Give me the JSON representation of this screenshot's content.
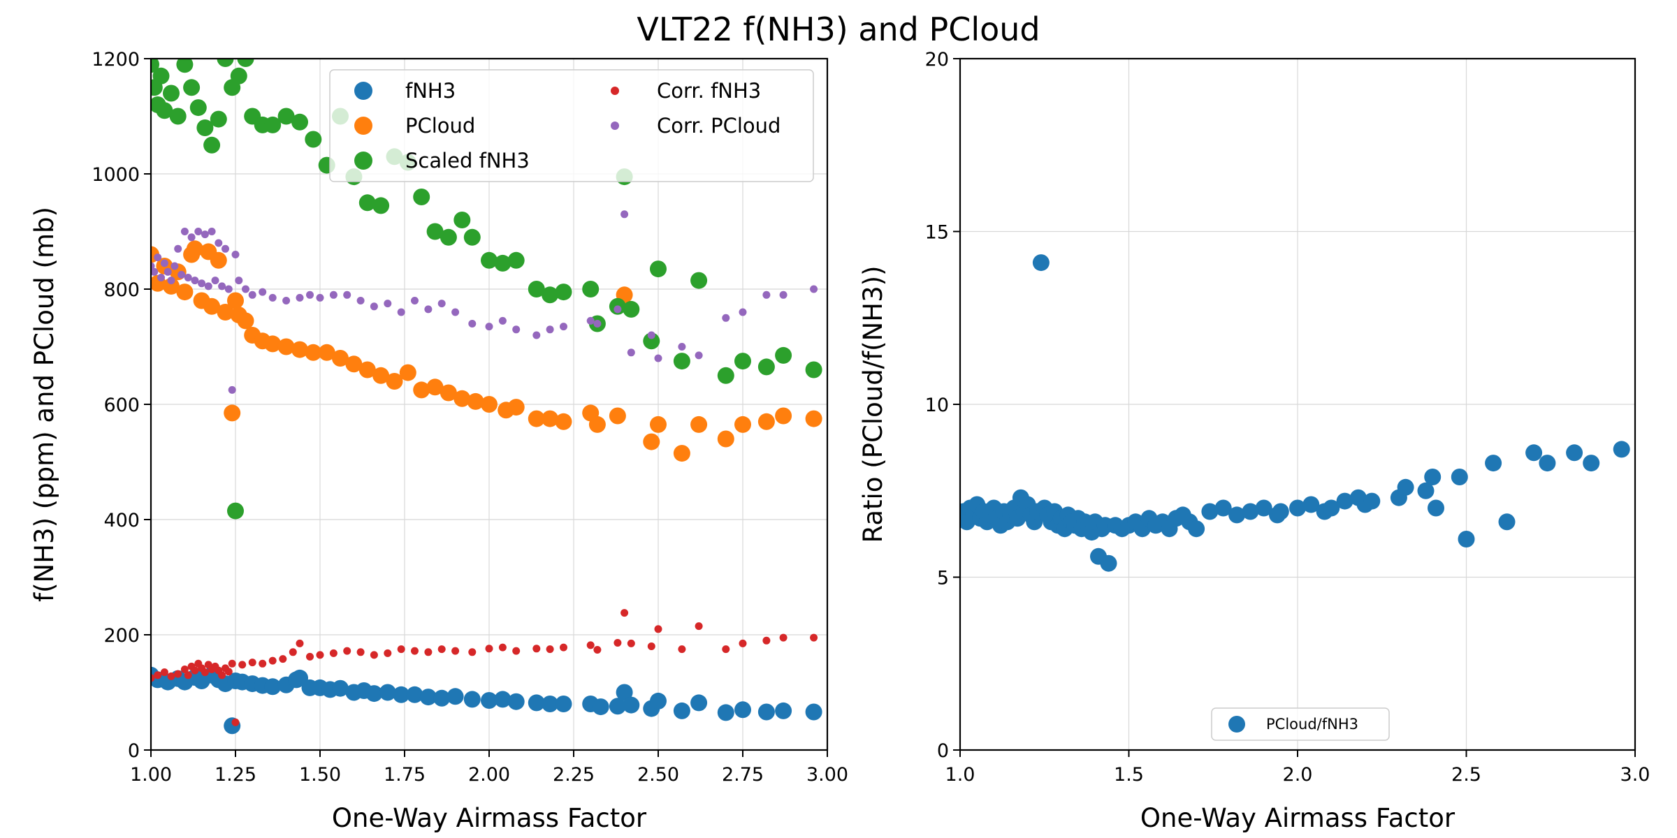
{
  "figure": {
    "title": "VLT22 f(NH3) and PCloud"
  },
  "chart_data": [
    {
      "type": "scatter",
      "xlabel": "One-Way Airmass Factor",
      "ylabel": "f(NH3) (ppm) and PCloud (mb)",
      "xlim": [
        1.0,
        3.0
      ],
      "ylim": [
        0,
        1200
      ],
      "xticks": [
        "1.00",
        "1.25",
        "1.50",
        "1.75",
        "2.00",
        "2.25",
        "2.50",
        "2.75",
        "3.00"
      ],
      "yticks": [
        "0",
        "200",
        "400",
        "600",
        "800",
        "1000",
        "1200"
      ],
      "grid": true,
      "legend_position": "upper-center",
      "legend_columns": 2,
      "series": [
        {
          "name": "fNH3",
          "color": "#1f77b4",
          "marker": "large",
          "x": [
            1.0,
            1.02,
            1.05,
            1.08,
            1.1,
            1.13,
            1.15,
            1.18,
            1.2,
            1.22,
            1.24,
            1.25,
            1.27,
            1.3,
            1.33,
            1.36,
            1.4,
            1.43,
            1.44,
            1.47,
            1.5,
            1.53,
            1.56,
            1.6,
            1.63,
            1.66,
            1.7,
            1.74,
            1.78,
            1.82,
            1.86,
            1.9,
            1.95,
            2.0,
            2.04,
            2.08,
            2.14,
            2.18,
            2.22,
            2.3,
            2.33,
            2.38,
            2.4,
            2.42,
            2.48,
            2.5,
            2.57,
            2.62,
            2.7,
            2.75,
            2.82,
            2.87,
            2.96
          ],
          "y": [
            130,
            122,
            118,
            124,
            118,
            126,
            120,
            130,
            122,
            115,
            42,
            120,
            118,
            115,
            112,
            110,
            113,
            122,
            125,
            108,
            108,
            105,
            107,
            100,
            103,
            98,
            100,
            96,
            96,
            92,
            90,
            93,
            88,
            86,
            88,
            84,
            82,
            80,
            80,
            80,
            75,
            76,
            100,
            78,
            72,
            85,
            68,
            82,
            65,
            70,
            66,
            68,
            66
          ]
        },
        {
          "name": "PCloud",
          "color": "#ff7f0e",
          "marker": "large",
          "x": [
            1.0,
            1.02,
            1.04,
            1.06,
            1.08,
            1.1,
            1.12,
            1.13,
            1.15,
            1.17,
            1.18,
            1.2,
            1.22,
            1.24,
            1.25,
            1.26,
            1.28,
            1.3,
            1.33,
            1.36,
            1.4,
            1.44,
            1.48,
            1.52,
            1.56,
            1.6,
            1.64,
            1.68,
            1.72,
            1.76,
            1.8,
            1.84,
            1.88,
            1.92,
            1.96,
            2.0,
            2.05,
            2.08,
            2.14,
            2.18,
            2.22,
            2.3,
            2.32,
            2.38,
            2.4,
            2.48,
            2.5,
            2.57,
            2.62,
            2.7,
            2.75,
            2.82,
            2.87,
            2.96
          ],
          "y": [
            860,
            810,
            840,
            805,
            830,
            795,
            860,
            870,
            780,
            865,
            770,
            850,
            760,
            585,
            780,
            755,
            745,
            720,
            710,
            705,
            700,
            695,
            690,
            690,
            680,
            670,
            660,
            650,
            640,
            655,
            625,
            630,
            620,
            610,
            605,
            600,
            590,
            595,
            575,
            575,
            570,
            585,
            565,
            580,
            790,
            535,
            565,
            515,
            565,
            540,
            565,
            570,
            580,
            575
          ]
        },
        {
          "name": "Scaled fNH3",
          "color": "#2ca02c",
          "marker": "large",
          "x": [
            1.0,
            1.01,
            1.02,
            1.03,
            1.04,
            1.06,
            1.08,
            1.1,
            1.12,
            1.14,
            1.16,
            1.18,
            1.2,
            1.22,
            1.24,
            1.25,
            1.26,
            1.28,
            1.3,
            1.33,
            1.36,
            1.4,
            1.44,
            1.48,
            1.52,
            1.56,
            1.6,
            1.64,
            1.68,
            1.72,
            1.76,
            1.8,
            1.84,
            1.88,
            1.92,
            1.95,
            2.0,
            2.04,
            2.08,
            2.14,
            2.18,
            2.22,
            2.3,
            2.32,
            2.38,
            2.4,
            2.42,
            2.48,
            2.5,
            2.57,
            2.62,
            2.7,
            2.75,
            2.82,
            2.87,
            2.96
          ],
          "y": [
            1190,
            1150,
            1120,
            1170,
            1110,
            1140,
            1100,
            1190,
            1150,
            1115,
            1080,
            1050,
            1095,
            1200,
            1150,
            415,
            1170,
            1200,
            1100,
            1085,
            1085,
            1100,
            1090,
            1060,
            1015,
            1100,
            995,
            950,
            945,
            1030,
            1020,
            960,
            900,
            890,
            920,
            890,
            850,
            845,
            850,
            800,
            790,
            795,
            800,
            740,
            770,
            995,
            765,
            710,
            835,
            675,
            815,
            650,
            675,
            665,
            685,
            660
          ]
        },
        {
          "name": "Corr. fNH3",
          "color": "#d62728",
          "marker": "small",
          "x": [
            1.0,
            1.02,
            1.04,
            1.06,
            1.08,
            1.1,
            1.11,
            1.12,
            1.13,
            1.14,
            1.15,
            1.16,
            1.17,
            1.18,
            1.19,
            1.2,
            1.21,
            1.22,
            1.23,
            1.24,
            1.25,
            1.27,
            1.3,
            1.33,
            1.36,
            1.39,
            1.42,
            1.44,
            1.47,
            1.5,
            1.54,
            1.58,
            1.62,
            1.66,
            1.7,
            1.74,
            1.78,
            1.82,
            1.86,
            1.9,
            1.95,
            2.0,
            2.04,
            2.08,
            2.14,
            2.18,
            2.22,
            2.3,
            2.32,
            2.38,
            2.4,
            2.42,
            2.48,
            2.5,
            2.57,
            2.62,
            2.7,
            2.75,
            2.82,
            2.87,
            2.96
          ],
          "y": [
            125,
            130,
            135,
            128,
            132,
            140,
            130,
            145,
            138,
            150,
            142,
            135,
            148,
            140,
            145,
            138,
            130,
            142,
            136,
            150,
            48,
            148,
            152,
            150,
            155,
            158,
            170,
            185,
            162,
            165,
            168,
            172,
            170,
            165,
            168,
            175,
            172,
            170,
            175,
            172,
            170,
            176,
            178,
            172,
            176,
            175,
            178,
            182,
            174,
            186,
            238,
            185,
            180,
            210,
            175,
            215,
            175,
            185,
            190,
            195,
            195
          ]
        },
        {
          "name": "Corr. PCloud",
          "color": "#9467bd",
          "marker": "small",
          "x": [
            1.0,
            1.01,
            1.02,
            1.03,
            1.04,
            1.05,
            1.06,
            1.07,
            1.08,
            1.09,
            1.1,
            1.11,
            1.12,
            1.13,
            1.14,
            1.15,
            1.16,
            1.17,
            1.18,
            1.19,
            1.2,
            1.21,
            1.22,
            1.23,
            1.24,
            1.25,
            1.26,
            1.28,
            1.3,
            1.33,
            1.36,
            1.4,
            1.44,
            1.47,
            1.5,
            1.54,
            1.58,
            1.62,
            1.66,
            1.7,
            1.74,
            1.78,
            1.82,
            1.86,
            1.9,
            1.95,
            2.0,
            2.04,
            2.08,
            2.14,
            2.18,
            2.22,
            2.3,
            2.32,
            2.38,
            2.4,
            2.42,
            2.48,
            2.5,
            2.57,
            2.62,
            2.7,
            2.75,
            2.82,
            2.87,
            2.96
          ],
          "y": [
            840,
            830,
            855,
            820,
            845,
            830,
            815,
            840,
            870,
            825,
            900,
            820,
            890,
            815,
            900,
            810,
            895,
            805,
            900,
            815,
            880,
            805,
            870,
            800,
            625,
            860,
            815,
            800,
            790,
            795,
            785,
            780,
            785,
            790,
            785,
            790,
            790,
            780,
            770,
            775,
            760,
            780,
            765,
            775,
            760,
            740,
            735,
            745,
            730,
            720,
            730,
            735,
            745,
            740,
            765,
            930,
            690,
            720,
            680,
            700,
            685,
            750,
            760,
            790,
            790,
            800
          ]
        }
      ]
    },
    {
      "type": "scatter",
      "xlabel": "One-Way Airmass Factor",
      "ylabel": "Ratio (PCloud/f(NH3))",
      "xlim": [
        1.0,
        3.0
      ],
      "ylim": [
        0,
        20
      ],
      "xticks": [
        "1.0",
        "1.5",
        "2.0",
        "2.5",
        "3.0"
      ],
      "yticks": [
        "0",
        "5",
        "10",
        "15",
        "20"
      ],
      "grid": true,
      "legend_position": "lower-center",
      "series": [
        {
          "name": "PCloud/fNH3",
          "color": "#1f77b4",
          "marker": "large",
          "x": [
            1.0,
            1.01,
            1.02,
            1.03,
            1.04,
            1.05,
            1.06,
            1.07,
            1.08,
            1.09,
            1.1,
            1.11,
            1.12,
            1.13,
            1.14,
            1.15,
            1.16,
            1.17,
            1.18,
            1.19,
            1.2,
            1.21,
            1.22,
            1.23,
            1.24,
            1.25,
            1.26,
            1.27,
            1.28,
            1.29,
            1.3,
            1.31,
            1.32,
            1.33,
            1.34,
            1.35,
            1.36,
            1.37,
            1.38,
            1.39,
            1.4,
            1.41,
            1.42,
            1.43,
            1.44,
            1.46,
            1.48,
            1.5,
            1.52,
            1.54,
            1.56,
            1.58,
            1.6,
            1.62,
            1.64,
            1.66,
            1.68,
            1.7,
            1.74,
            1.78,
            1.82,
            1.86,
            1.9,
            1.94,
            1.95,
            2.0,
            2.04,
            2.08,
            2.1,
            2.14,
            2.18,
            2.2,
            2.22,
            2.3,
            2.32,
            2.38,
            2.4,
            2.41,
            2.48,
            2.5,
            2.58,
            2.62,
            2.7,
            2.74,
            2.82,
            2.87,
            2.96
          ],
          "y": [
            6.7,
            6.9,
            6.6,
            7.0,
            6.8,
            7.1,
            6.7,
            6.9,
            6.6,
            6.8,
            7.0,
            6.7,
            6.5,
            6.9,
            6.6,
            6.8,
            7.0,
            6.7,
            7.3,
            6.9,
            7.1,
            6.8,
            6.6,
            6.9,
            14.1,
            7.0,
            6.8,
            6.6,
            6.9,
            6.5,
            6.7,
            6.4,
            6.8,
            6.6,
            6.5,
            6.7,
            6.4,
            6.6,
            6.5,
            6.3,
            6.6,
            5.6,
            6.4,
            6.5,
            5.4,
            6.5,
            6.4,
            6.5,
            6.6,
            6.4,
            6.7,
            6.5,
            6.6,
            6.4,
            6.7,
            6.8,
            6.6,
            6.4,
            6.9,
            7.0,
            6.8,
            6.9,
            7.0,
            6.8,
            6.9,
            7.0,
            7.1,
            6.9,
            7.0,
            7.2,
            7.3,
            7.1,
            7.2,
            7.3,
            7.6,
            7.5,
            7.9,
            7.0,
            7.9,
            6.1,
            8.3,
            6.6,
            8.6,
            8.3,
            8.6,
            8.3,
            8.7
          ]
        }
      ]
    }
  ]
}
